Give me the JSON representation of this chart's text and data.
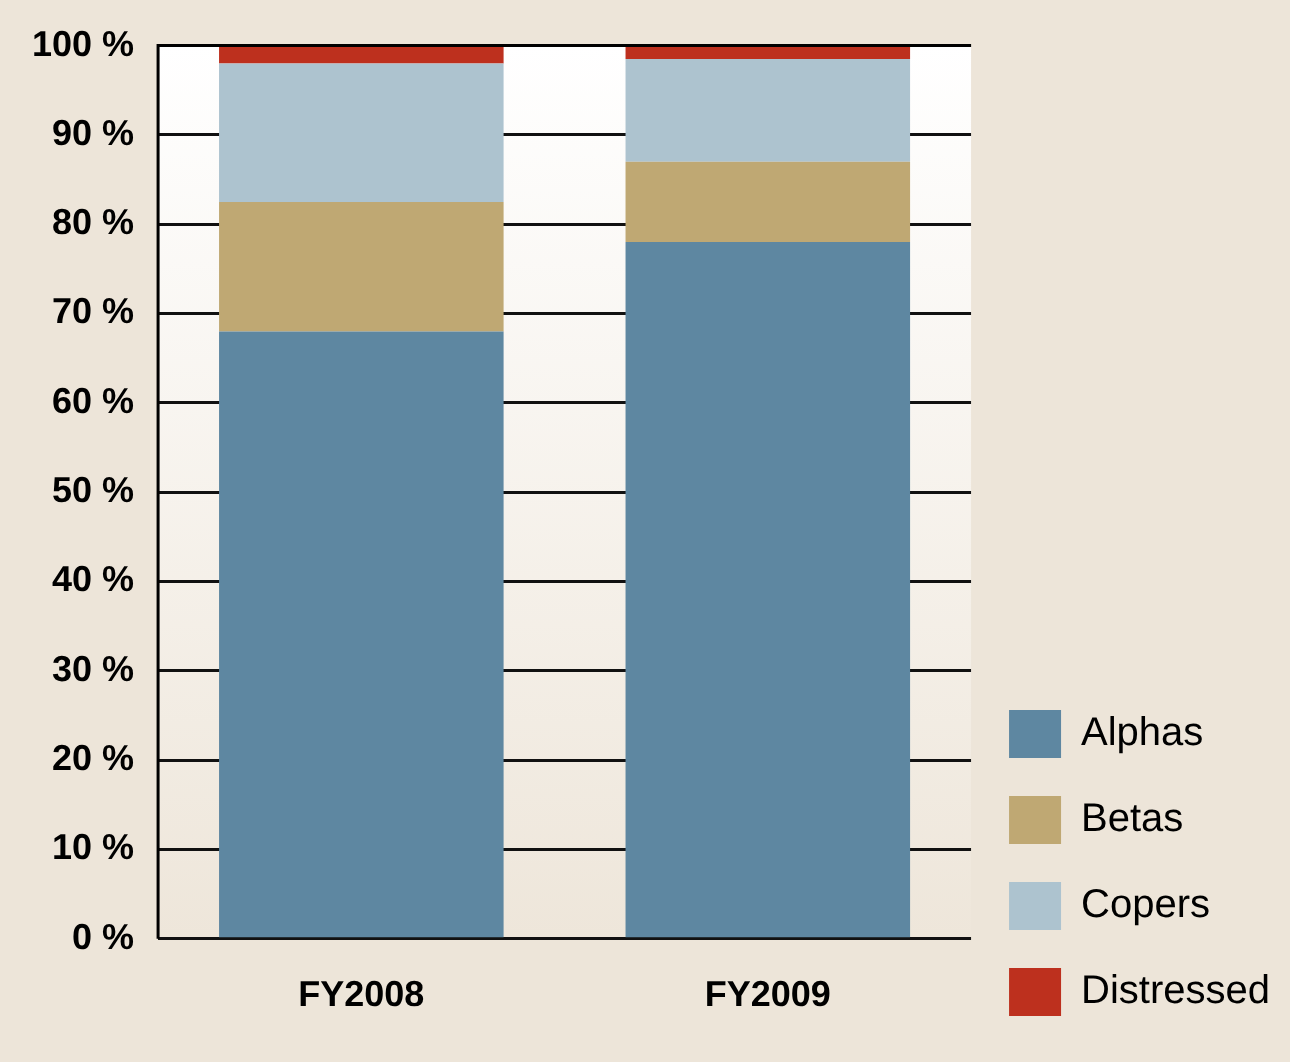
{
  "chart_data": {
    "type": "bar",
    "stacked": true,
    "categories": [
      "FY2008",
      "FY2009"
    ],
    "series": [
      {
        "name": "Alphas",
        "color": "#5e87a1",
        "values": [
          68,
          78
        ]
      },
      {
        "name": "Betas",
        "color": "#bfa873",
        "values": [
          14.5,
          9
        ]
      },
      {
        "name": "Copers",
        "color": "#adc3cf",
        "values": [
          15.5,
          11.5
        ]
      },
      {
        "name": "Distressed",
        "color": "#bd301e",
        "values": [
          2,
          1.5
        ]
      }
    ],
    "ylim": [
      0,
      100
    ],
    "yticks": [
      {
        "value": 0,
        "label": "0 %"
      },
      {
        "value": 10,
        "label": "10 %"
      },
      {
        "value": 20,
        "label": "20 %"
      },
      {
        "value": 30,
        "label": "30 %"
      },
      {
        "value": 40,
        "label": "40 %"
      },
      {
        "value": 50,
        "label": "50 %"
      },
      {
        "value": 60,
        "label": "60 %"
      },
      {
        "value": 70,
        "label": "70 %"
      },
      {
        "value": 80,
        "label": "80 %"
      },
      {
        "value": 90,
        "label": "90 %"
      },
      {
        "value": 100,
        "label": "100 %"
      }
    ],
    "grid": "y",
    "legend": "bottom right"
  }
}
